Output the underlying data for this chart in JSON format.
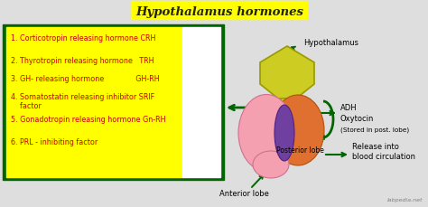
{
  "title": "Hypothalamus hormones",
  "title_bg": "#FFFF00",
  "title_fontsize": 9.5,
  "bg_color": "#DEDEDE",
  "list_items": [
    "1. Corticotropin releasing hormone CRH",
    "2. Thyrotropin releasing hormone   TRH",
    "3. GH- releasing hormone              GH-RH",
    "4. Somatostatin releasing inhibitor SRIF\n    factor",
    "5. Gonadotropin releasing hormone Gn-RH",
    "6. PRL - inhibiting factor"
  ],
  "list_box_color": "#FFFF00",
  "list_border_color": "#006600",
  "list_text_color": "#CC0000",
  "list_fontsize": 5.8,
  "hypothalamus_label": "Hypothalamus",
  "anterior_label": "Anterior lobe",
  "posterior_label": "Posterior lobe",
  "adh_label": "ADH",
  "oxytocin_label": "Oxytocin",
  "stored_label": "(Stored in post. lobe)",
  "release_label": "Release into\nblood circulation",
  "arrow_color": "#006600",
  "label_fontsize": 6.0,
  "watermark": "labpedia.net",
  "hypo_color": "#CCCC22",
  "hypo_edge": "#999900",
  "post_color": "#E07030",
  "post_edge": "#B05010",
  "ant_color": "#F5A0B0",
  "ant_edge": "#D07090",
  "int_color": "#7040A0",
  "int_edge": "#502080"
}
